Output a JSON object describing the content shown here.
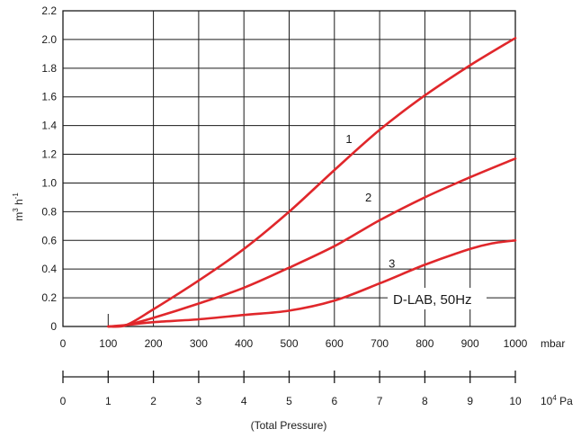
{
  "chart_data": {
    "type": "line",
    "ylabel": {
      "base": "m",
      "sup1": "3",
      "mid": " h",
      "sup2": "-1"
    },
    "ylim": [
      0,
      2.2
    ],
    "xlim": [
      0,
      1000
    ],
    "grid": true,
    "y_ticks": [
      "0",
      "0.2",
      "0.4",
      "0.6",
      "0.8",
      "1.0",
      "1.2",
      "1.4",
      "1.6",
      "1.8",
      "2.0",
      "2.2"
    ],
    "x_ticks": [
      "0",
      "100",
      "200",
      "300",
      "400",
      "500",
      "600",
      "700",
      "800",
      "900",
      "1000"
    ],
    "x_unit": "mbar",
    "x2_ticks": [
      "0",
      "1",
      "2",
      "3",
      "4",
      "5",
      "6",
      "7",
      "8",
      "9",
      "10"
    ],
    "x2_unit": {
      "base": "10",
      "sup": "4",
      "rest": " Pa"
    },
    "xlabel": "(Total Pressure)",
    "annotation": "D-LAB, 50Hz",
    "series": [
      {
        "name": "1",
        "x": [
          100,
          140,
          200,
          300,
          400,
          500,
          600,
          700,
          800,
          900,
          1000
        ],
        "y": [
          0,
          0.01,
          0.12,
          0.32,
          0.54,
          0.8,
          1.09,
          1.37,
          1.61,
          1.82,
          2.01
        ]
      },
      {
        "name": "2",
        "x": [
          100,
          140,
          200,
          300,
          400,
          500,
          600,
          700,
          800,
          900,
          1000
        ],
        "y": [
          0,
          0.01,
          0.06,
          0.16,
          0.27,
          0.41,
          0.56,
          0.74,
          0.9,
          1.04,
          1.17
        ]
      },
      {
        "name": "3",
        "x": [
          100,
          140,
          200,
          300,
          400,
          500,
          600,
          700,
          800,
          900,
          950,
          1000
        ],
        "y": [
          0,
          0.01,
          0.03,
          0.05,
          0.08,
          0.11,
          0.18,
          0.3,
          0.43,
          0.54,
          0.58,
          0.6
        ]
      }
    ]
  }
}
